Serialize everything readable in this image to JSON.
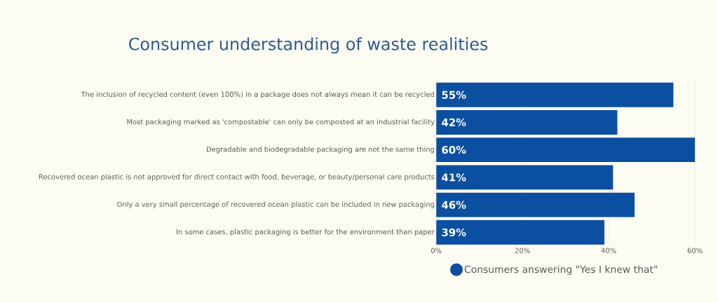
{
  "chart_data": {
    "type": "bar",
    "orientation": "horizontal",
    "title": "Consumer understanding of waste realities",
    "categories": [
      "The inclusion of recycled content (even 100%) in a package does not always mean it can be recycled",
      "Most packaging marked as 'compostable' can only be composted at an industrial facility",
      "Degradable and biodegradable packaging are not the same thing",
      "Recovered ocean plastic is not approved for direct contact with food, beverage, or beauty/personal care products",
      "Only a very small percentage of recovered ocean plastic can be included in new packaging",
      "In some cases, plastic packaging is better for the environment than paper"
    ],
    "series": [
      {
        "name": "Consumers answering \"Yes I knew that\"",
        "color": "#0b4fa0",
        "values": [
          55,
          42,
          60,
          41,
          46,
          39
        ],
        "value_labels": [
          "55%",
          "42%",
          "60%",
          "41%",
          "46%",
          "39%"
        ]
      }
    ],
    "xlim": [
      0,
      60
    ],
    "xticks": [
      {
        "value": 0,
        "label": "0%"
      },
      {
        "value": 20,
        "label": "20%"
      },
      {
        "value": 40,
        "label": "40%"
      },
      {
        "value": 60,
        "label": "60%"
      }
    ],
    "grid": "x",
    "legend": "bottom"
  }
}
